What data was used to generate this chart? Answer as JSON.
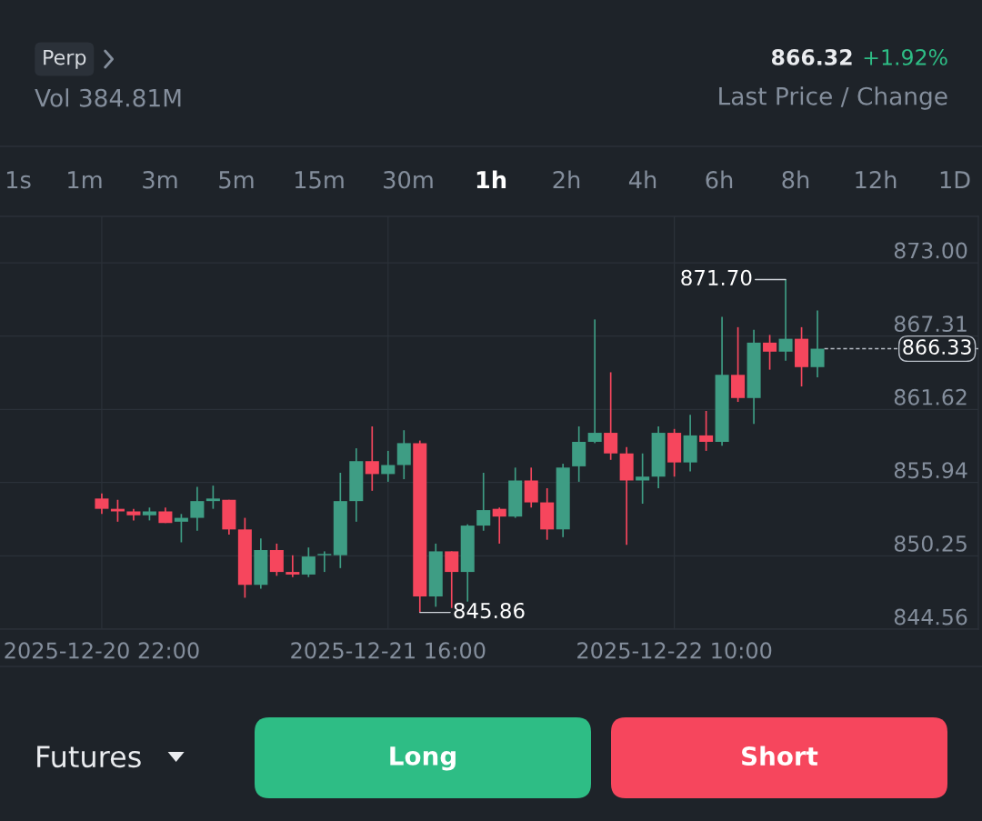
{
  "chart_data": {
    "type": "candlestick",
    "subtitle": "Vol 384.81M",
    "x": [
      "2025-12-20T22:00",
      "2025-12-20T23:00",
      "2025-12-21T00:00",
      "2025-12-21T01:00",
      "2025-12-21T02:00",
      "2025-12-21T03:00",
      "2025-12-21T04:00",
      "2025-12-21T05:00",
      "2025-12-21T06:00",
      "2025-12-21T07:00",
      "2025-12-21T08:00",
      "2025-12-21T09:00",
      "2025-12-21T10:00",
      "2025-12-21T11:00",
      "2025-12-21T12:00",
      "2025-12-21T13:00",
      "2025-12-21T14:00",
      "2025-12-21T15:00",
      "2025-12-21T16:00",
      "2025-12-21T17:00",
      "2025-12-21T18:00",
      "2025-12-21T19:00",
      "2025-12-21T20:00",
      "2025-12-21T21:00",
      "2025-12-21T22:00",
      "2025-12-21T23:00",
      "2025-12-22T00:00",
      "2025-12-22T01:00",
      "2025-12-22T02:00",
      "2025-12-22T03:00",
      "2025-12-22T04:00",
      "2025-12-22T05:00",
      "2025-12-22T06:00",
      "2025-12-22T07:00",
      "2025-12-22T08:00",
      "2025-12-22T09:00",
      "2025-12-22T10:00",
      "2025-12-22T11:00",
      "2025-12-22T12:00",
      "2025-12-22T13:00",
      "2025-12-22T14:00",
      "2025-12-22T15:00",
      "2025-12-22T16:00",
      "2025-12-22T17:00",
      "2025-12-22T18:00",
      "2025-12-22T19:00"
    ],
    "ohlc": [
      [
        854.7,
        855.1,
        853.5,
        853.9
      ],
      [
        853.9,
        854.6,
        852.9,
        853.7
      ],
      [
        853.7,
        853.9,
        853.0,
        853.4
      ],
      [
        853.4,
        854.0,
        853.0,
        853.7
      ],
      [
        853.7,
        854.0,
        852.8,
        852.8
      ],
      [
        852.9,
        853.5,
        851.3,
        853.2
      ],
      [
        853.2,
        855.6,
        852.2,
        854.5
      ],
      [
        854.5,
        855.7,
        853.9,
        854.7
      ],
      [
        854.6,
        854.6,
        851.9,
        852.3
      ],
      [
        852.3,
        853.2,
        847.0,
        848.0
      ],
      [
        848.0,
        851.6,
        847.7,
        850.7
      ],
      [
        850.7,
        851.2,
        848.7,
        849.0
      ],
      [
        849.0,
        850.3,
        848.6,
        848.8
      ],
      [
        848.8,
        850.9,
        848.6,
        850.2
      ],
      [
        850.3,
        850.6,
        849.0,
        850.4
      ],
      [
        850.3,
        856.7,
        849.3,
        854.5
      ],
      [
        854.5,
        858.6,
        852.9,
        857.6
      ],
      [
        857.6,
        860.3,
        855.3,
        856.6
      ],
      [
        856.6,
        858.4,
        856.0,
        857.3
      ],
      [
        857.3,
        860.0,
        856.2,
        859.0
      ],
      [
        859.0,
        859.2,
        845.86,
        847.1
      ],
      [
        847.1,
        851.2,
        846.3,
        850.6
      ],
      [
        850.6,
        850.6,
        846.2,
        849.0
      ],
      [
        849.0,
        852.7,
        846.7,
        852.6
      ],
      [
        852.6,
        856.7,
        852.2,
        853.8
      ],
      [
        853.9,
        854.0,
        851.2,
        853.3
      ],
      [
        853.3,
        857.1,
        853.2,
        856.1
      ],
      [
        856.1,
        857.1,
        854.0,
        854.4
      ],
      [
        854.4,
        855.5,
        851.5,
        852.3
      ],
      [
        852.3,
        857.4,
        851.7,
        857.1
      ],
      [
        857.2,
        860.3,
        856.0,
        859.1
      ],
      [
        859.1,
        868.6,
        859.0,
        859.8
      ],
      [
        859.8,
        864.5,
        857.7,
        858.2
      ],
      [
        858.2,
        858.7,
        851.1,
        856.1
      ],
      [
        856.1,
        858.2,
        854.3,
        856.4
      ],
      [
        856.4,
        860.3,
        855.5,
        859.8
      ],
      [
        859.8,
        860.1,
        856.4,
        857.5
      ],
      [
        857.5,
        861.2,
        856.8,
        859.6
      ],
      [
        859.6,
        861.5,
        858.4,
        859.1
      ],
      [
        859.1,
        868.8,
        858.8,
        864.3
      ],
      [
        864.3,
        868.0,
        862.2,
        862.5
      ],
      [
        862.5,
        867.8,
        860.5,
        866.8
      ],
      [
        866.8,
        867.4,
        864.7,
        866.1
      ],
      [
        866.1,
        871.7,
        865.4,
        867.1
      ],
      [
        867.1,
        868.0,
        863.4,
        864.9
      ],
      [
        864.9,
        869.3,
        864.1,
        866.33
      ]
    ],
    "colors": [
      "#f6465d",
      "#f6465d",
      "#f6465d",
      "#3e9d84",
      "#f6465d",
      "#3e9d84",
      "#3e9d84",
      "#3e9d84",
      "#f6465d",
      "#f6465d",
      "#3e9d84",
      "#f6465d",
      "#f6465d",
      "#3e9d84",
      "#3e9d84",
      "#3e9d84",
      "#3e9d84",
      "#f6465d",
      "#3e9d84",
      "#3e9d84",
      "#f6465d",
      "#3e9d84",
      "#f6465d",
      "#3e9d84",
      "#3e9d84",
      "#f6465d",
      "#3e9d84",
      "#f6465d",
      "#f6465d",
      "#3e9d84",
      "#3e9d84",
      "#3e9d84",
      "#f6465d",
      "#f6465d",
      "#3e9d84",
      "#3e9d84",
      "#f6465d",
      "#3e9d84",
      "#f6465d",
      "#3e9d84",
      "#f6465d",
      "#3e9d84",
      "#f6465d",
      "#3e9d84",
      "#f6465d",
      "#3e9d84"
    ],
    "xlim": [
      "2025-12-20T15:36",
      "2025-12-23T05:07"
    ],
    "xticks": [
      {
        "value": "2025-12-20T22:00",
        "label": "2025-12-20 22:00"
      },
      {
        "value": "2025-12-21T16:00",
        "label": "2025-12-21 16:00"
      },
      {
        "value": "2025-12-22T10:00",
        "label": "2025-12-22 10:00"
      }
    ],
    "ylim": [
      844.56,
      876.6
    ],
    "yticks": [
      {
        "value": 873.0,
        "label": "873.00"
      },
      867.31,
      861.62,
      855.94,
      850.25,
      844.56
    ],
    "grid": true,
    "ref_lines": [
      {
        "axis": "y",
        "value": 866.33,
        "label": "866.33",
        "line_style": "dashed",
        "color": "#b7bdc6"
      }
    ],
    "annotations": [
      "Perp",
      "866.32",
      "+1.92%",
      "Last Price / Change",
      "1s",
      "1m",
      "3m",
      "5m",
      "15m",
      "30m",
      "1h",
      "2h",
      "4h",
      "6h",
      "8h",
      "12h",
      "1D",
      "Futures",
      "Long",
      "Short",
      {
        "text": "871.70",
        "x": "2025-12-22T17:00",
        "y": 871.7
      },
      {
        "text": "845.86",
        "x": "2025-12-21T18:00",
        "y": 845.86
      }
    ]
  }
}
